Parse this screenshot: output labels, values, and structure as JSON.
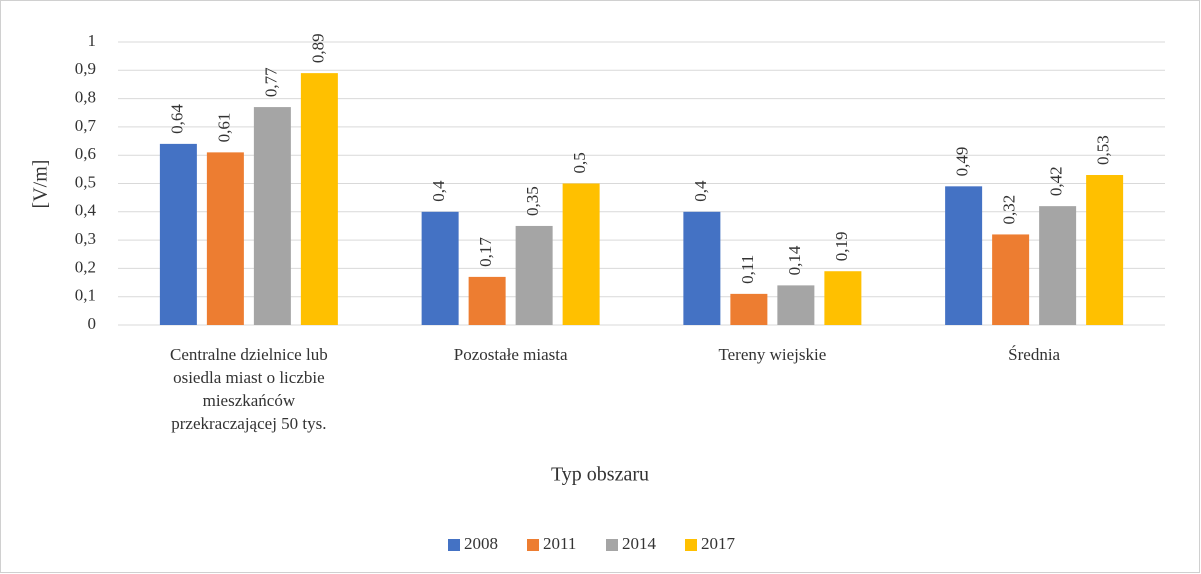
{
  "chart_data": {
    "type": "bar",
    "categories": [
      "Centralne dzielnice lub osiedla miast o liczbie mieszkańców przekraczającej 50 tys.",
      "Pozostałe miasta",
      "Tereny wiejskie",
      "Średnia"
    ],
    "series": [
      {
        "name": "2008",
        "color": "#4472c4",
        "values": [
          0.64,
          0.4,
          0.4,
          0.49
        ],
        "value_labels": [
          "0,64",
          "0,4",
          "0,4",
          "0,49"
        ]
      },
      {
        "name": "2011",
        "color": "#ed7d31",
        "values": [
          0.61,
          0.17,
          0.11,
          0.32
        ],
        "value_labels": [
          "0,61",
          "0,17",
          "0,11",
          "0,32"
        ]
      },
      {
        "name": "2014",
        "color": "#a5a5a5",
        "values": [
          0.77,
          0.35,
          0.14,
          0.42
        ],
        "value_labels": [
          "0,77",
          "0,35",
          "0,14",
          "0,42"
        ]
      },
      {
        "name": "2017",
        "color": "#ffc000",
        "values": [
          0.89,
          0.5,
          0.19,
          0.53
        ],
        "value_labels": [
          "0,89",
          "0,5",
          "0,19",
          "0,53"
        ]
      }
    ],
    "ylabel": "[V/m]",
    "xlabel": "Typ obszaru",
    "ylim": [
      0,
      1
    ],
    "yticks": [
      0,
      {
        "value": 0.1,
        "label": "0,1"
      },
      {
        "value": 0.2,
        "label": "0,2"
      },
      {
        "value": 0.3,
        "label": "0,3"
      },
      {
        "value": 0.4,
        "label": "0,4"
      },
      {
        "value": 0.5,
        "label": "0,5"
      },
      {
        "value": 0.6,
        "label": "0,6"
      },
      {
        "value": 0.7,
        "label": "0,7"
      },
      {
        "value": 0.8,
        "label": "0,8"
      },
      {
        "value": 0.9,
        "label": "0,9"
      },
      1
    ],
    "grid": true,
    "legend": "bottom"
  }
}
